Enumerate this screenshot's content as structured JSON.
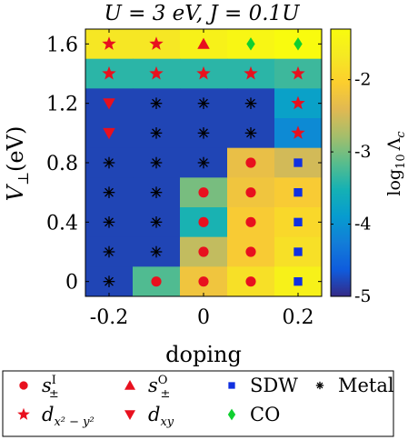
{
  "chart_data": {
    "type": "heatmap",
    "title": "U = 3 eV, J = 0.1U",
    "title_parts": {
      "main": "U = 3 eV, J = 0.1",
      "italic_tail": "U"
    },
    "xlabel": "doping",
    "ylabel": "V⊥(eV)",
    "ylabel_parts": {
      "v": "V",
      "sub": "⊥",
      "unit": "(eV)"
    },
    "x": [
      -0.2,
      -0.1,
      0,
      0.1,
      0.2
    ],
    "y": [
      1.6,
      1.4,
      1.2,
      1.0,
      0.8,
      0.6,
      0.4,
      0.2,
      0
    ],
    "x_ticks": [
      "-0.2",
      "0",
      "0.2"
    ],
    "x_tick_values": [
      -0.2,
      0,
      0.2
    ],
    "y_ticks": [
      "1.6",
      "1.2",
      "0.8",
      "0.4",
      "0"
    ],
    "y_tick_values": [
      1.6,
      1.2,
      0.8,
      0.4,
      0
    ],
    "xlim": [
      -0.25,
      0.25
    ],
    "ylim": [
      -0.1,
      1.7
    ],
    "colorbar": {
      "label": "log10 Λc",
      "label_parts": {
        "log": "log",
        "sub": "10",
        "lambda": "Λ",
        "lsub": "c"
      },
      "ticks": [
        "-2",
        "-3",
        "-4",
        "-5"
      ],
      "tick_values": [
        -2,
        -3,
        -4,
        -5
      ],
      "range": [
        -5,
        -1.3
      ],
      "colormap": "parula"
    },
    "values": [
      [
        -1.7,
        -1.7,
        -1.5,
        -1.4,
        -1.3
      ],
      [
        -3.4,
        -3.4,
        -3.4,
        -3.4,
        -3.3
      ],
      [
        -4.8,
        -4.8,
        -4.8,
        -4.8,
        -3.8
      ],
      [
        -4.8,
        -4.8,
        -4.8,
        -4.8,
        -4.1
      ],
      [
        -4.8,
        -4.8,
        -4.8,
        -2.3,
        -2.5
      ],
      [
        -4.8,
        -4.8,
        -3.0,
        -2.2,
        -2.1
      ],
      [
        -4.8,
        -4.8,
        -3.5,
        -2.1,
        -1.9
      ],
      [
        -4.8,
        -4.8,
        -2.6,
        -2.1,
        -1.8
      ],
      [
        -4.8,
        -3.2,
        -2.2,
        -1.8,
        -1.5
      ]
    ],
    "markers": [
      [
        "star",
        "star",
        "triangle-up",
        "diamond",
        "diamond"
      ],
      [
        "star",
        "star",
        "star",
        "star",
        "star"
      ],
      [
        "triangle-down",
        "asterisk",
        "asterisk",
        "asterisk",
        "star"
      ],
      [
        "triangle-down",
        "asterisk",
        "asterisk",
        "asterisk",
        "star"
      ],
      [
        "asterisk",
        "asterisk",
        "asterisk",
        "circle",
        "square"
      ],
      [
        "asterisk",
        "asterisk",
        "circle",
        "circle",
        "square"
      ],
      [
        "asterisk",
        "asterisk",
        "circle",
        "circle",
        "square"
      ],
      [
        "asterisk",
        "asterisk",
        "circle",
        "circle",
        "square"
      ],
      [
        "asterisk",
        "circle",
        "circle",
        "circle",
        "square"
      ]
    ],
    "marker_colors": {
      "circle": "#e8101e",
      "star": "#e8101e",
      "triangle-up": "#e8101e",
      "triangle-down": "#e8101e",
      "square": "#1030e0",
      "diamond": "#10d030",
      "asterisk": "#000000"
    },
    "legend": {
      "placement": "bottom",
      "entries": [
        {
          "marker": "circle",
          "label": "s±I",
          "parts": {
            "base": "s",
            "sub": "±",
            "sup": "I"
          }
        },
        {
          "marker": "triangle-up",
          "label": "s±O",
          "parts": {
            "base": "s",
            "sub": "±",
            "sup": "O"
          }
        },
        {
          "marker": "square",
          "label": "SDW"
        },
        {
          "marker": "asterisk",
          "label": "Metal"
        },
        {
          "marker": "star",
          "label": "dx2−y2",
          "parts": {
            "base": "d",
            "sub": "x² − y²"
          }
        },
        {
          "marker": "triangle-down",
          "label": "dxy",
          "parts": {
            "base": "d",
            "sub": "xy"
          }
        },
        {
          "marker": "diamond",
          "label": "CO"
        }
      ]
    }
  }
}
